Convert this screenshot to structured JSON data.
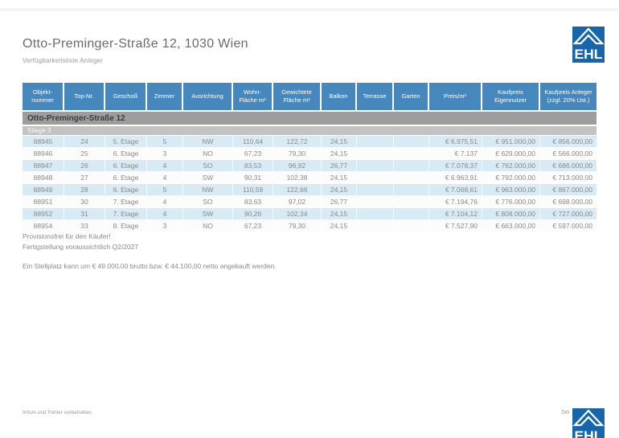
{
  "document": {
    "title": "Otto-Preminger-Straße 12, 1030 Wien",
    "subtitle": "Verfügbarkeitsliste Anleger"
  },
  "logo": {
    "text": "EHL"
  },
  "table": {
    "columns": [
      "Objekt-nummer",
      "Top-Nr.",
      "Geschoß",
      "Zimmer",
      "Ausrichtung",
      "Wohn-Fläche m²",
      "Gewichtete Fläche m²",
      "Balkon",
      "Terrasse",
      "Garten",
      "Preis/m²",
      "Kaufpreis Eigennutzer",
      "Kaufpreis Anleger (zzgl. 20% Ust.)"
    ],
    "group_label": "Otto-Preminger-Straße 12",
    "subgroup_label": "Stiege 3",
    "rows": [
      [
        "88945",
        "24",
        "5. Etage",
        "5",
        "NW",
        "110,64",
        "122,72",
        "24,15",
        "",
        "",
        "€ 6.975,51",
        "€ 951.000,00",
        "€ 856.000,00"
      ],
      [
        "88946",
        "25",
        "6. Etage",
        "3",
        "NO",
        "67,23",
        "79,30",
        "24,15",
        "",
        "",
        "€ 7.137",
        "€ 629.000,00",
        "€ 566.000,00"
      ],
      [
        "88947",
        "26",
        "6. Etage",
        "4",
        "SO",
        "83,53",
        "96,92",
        "26,77",
        "",
        "",
        "€ 7.078,37",
        "€ 762.000,00",
        "€ 686.000,00"
      ],
      [
        "88948",
        "27",
        "6. Etage",
        "4",
        "SW",
        "90,31",
        "102,38",
        "24,15",
        "",
        "",
        "€ 6.963,91",
        "€ 792.000,00",
        "€ 713.000,00"
      ],
      [
        "88949",
        "28",
        "6. Etage",
        "5",
        "NW",
        "110,58",
        "122,66",
        "24,15",
        "",
        "",
        "€ 7.068,61",
        "€ 963.000,00",
        "€ 867.000,00"
      ],
      [
        "88951",
        "30",
        "7. Etage",
        "4",
        "SO",
        "83,63",
        "97,02",
        "26,77",
        "",
        "",
        "€ 7.194,76",
        "€ 776.000,00",
        "€ 698.000,00"
      ],
      [
        "88952",
        "31",
        "7. Etage",
        "4",
        "SW",
        "90,26",
        "102,34",
        "24,15",
        "",
        "",
        "€ 7.104,12",
        "€ 808.000,00",
        "€ 727.000,00"
      ],
      [
        "88954",
        "33",
        "8. Etage",
        "3",
        "NO",
        "67,23",
        "79,30",
        "24,15",
        "",
        "",
        "€ 7.527,90",
        "€ 663.000,00",
        "€ 597.000,00"
      ]
    ]
  },
  "notes": {
    "line1": "Provisionsfrei für den Käufer!",
    "line2": "Fertigstellung voraussichtlich Q2/2027",
    "line3": "Ein Stellplatz kann um € 49.000,00 brutto bzw. € 44.100,00 netto angekauft werden."
  },
  "footer": {
    "disclaimer": "Irrtum und Fehler vorbehalten.",
    "page_fragment": "Sei"
  },
  "colors": {
    "header_bg": "#4687bd",
    "row_alt_bg": "#d7eaf5",
    "group_bg": "#9d9d9d",
    "subgroup_bg": "#c3c3c3",
    "logo_blue": "#1766a9"
  }
}
